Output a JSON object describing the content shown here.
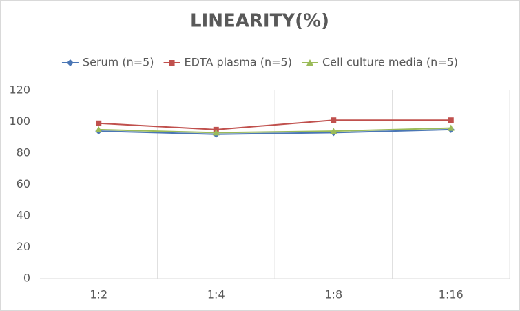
{
  "chart_data": {
    "type": "line",
    "title": "LINEARITY(%)",
    "categories": [
      "1:2",
      "1:4",
      "1:8",
      "1:16"
    ],
    "series": [
      {
        "name": "Serum (n=5)",
        "color": "#4a76b5",
        "marker": "diamond",
        "values": [
          94,
          92,
          93,
          95
        ]
      },
      {
        "name": "EDTA plasma (n=5)",
        "color": "#c0504d",
        "marker": "square",
        "values": [
          99,
          95,
          101,
          101
        ]
      },
      {
        "name": "Cell culture media (n=5)",
        "color": "#9bbb59",
        "marker": "triangle",
        "values": [
          95,
          93,
          94,
          96
        ]
      }
    ],
    "ylim": [
      0,
      120
    ],
    "yticks": [
      0,
      20,
      40,
      60,
      80,
      100,
      120
    ],
    "legend": "top"
  }
}
